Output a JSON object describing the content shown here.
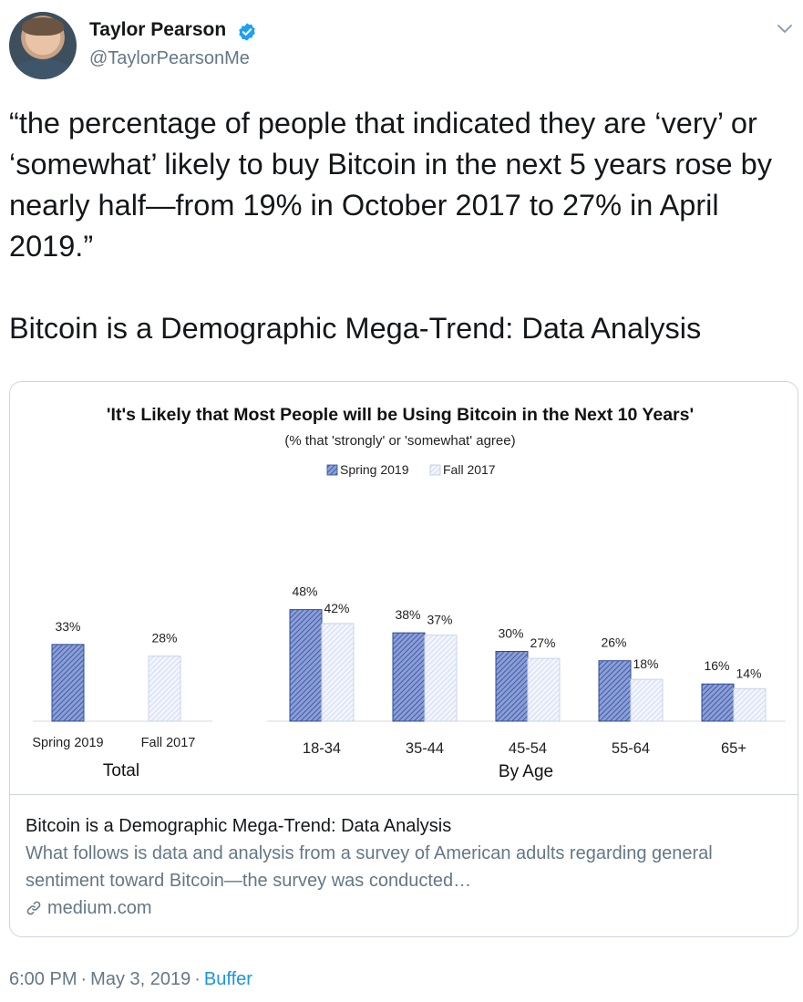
{
  "user": {
    "name": "Taylor Pearson",
    "handle": "@TaylorPearsonMe"
  },
  "tweet": {
    "text": "“the percentage of people that indicated they are ‘very’ or ‘somewhat’ likely to buy Bitcoin in the next 5 years rose by nearly half—from 19% in October 2017 to 27% in April 2019.”",
    "title_line": "Bitcoin is a Demographic Mega-Trend: Data Analysis"
  },
  "card": {
    "title": "Bitcoin is a Demographic Mega-Trend: Data Analysis",
    "description": "What follows is data and analysis from a survey of American adults regarding general sentiment toward Bitcoin—the survey was conducted…",
    "domain": "medium.com"
  },
  "footer": {
    "time": "6:00 PM",
    "date": "May 3, 2019",
    "app": "Buffer"
  },
  "colors": {
    "spring_fill": "#8b9ed6",
    "spring_stroke": "#2e4b9c",
    "fall_fill": "#e6ecf8",
    "fall_stroke": "#b9c6e6",
    "link": "#1b95e0",
    "verified": "#1da1f2"
  },
  "chart_data": {
    "type": "bar",
    "title": "'It's Likely that Most People will be Using Bitcoin in the Next 10 Years'",
    "subtitle": "(% that 'strongly' or 'somewhat' agree)",
    "legend_position": "top-center",
    "series": [
      {
        "name": "Spring 2019"
      },
      {
        "name": "Fall 2017"
      }
    ],
    "total": {
      "label": "Total",
      "categories": [
        "Spring 2019",
        "Fall 2017"
      ],
      "values": [
        33,
        28
      ],
      "value_labels": [
        "33%",
        "28%"
      ]
    },
    "by_age": {
      "label": "By Age",
      "categories": [
        "18-34",
        "35-44",
        "45-54",
        "55-64",
        "65+"
      ],
      "spring_2019": [
        48,
        38,
        30,
        26,
        16
      ],
      "fall_2017": [
        42,
        37,
        27,
        18,
        14
      ],
      "spring_labels": [
        "48%",
        "38%",
        "30%",
        "26%",
        "16%"
      ],
      "fall_labels": [
        "42%",
        "37%",
        "27%",
        "18%",
        "14%"
      ]
    },
    "ylim": [
      0,
      60
    ],
    "grid": false
  }
}
